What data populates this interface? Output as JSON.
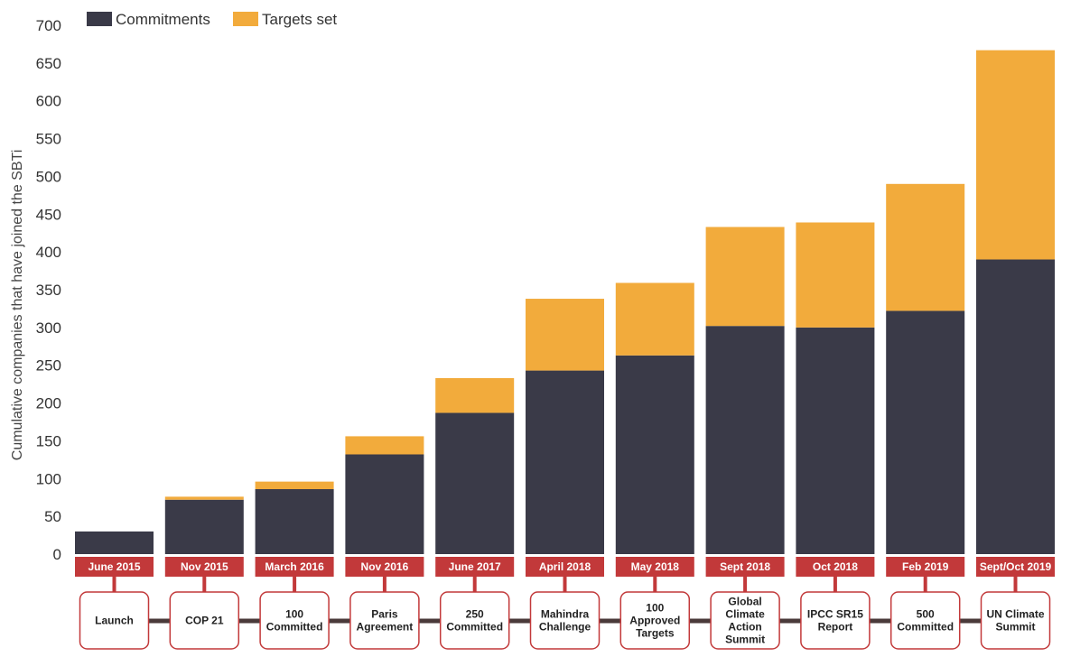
{
  "chart_data": {
    "type": "bar",
    "stacked": true,
    "ylabel": "Cumulative companies that have joined the SBTi",
    "ylim": [
      0,
      700
    ],
    "yticks": [
      0,
      50,
      100,
      150,
      200,
      250,
      300,
      350,
      400,
      450,
      500,
      550,
      600,
      650,
      700
    ],
    "categories": [
      "June 2015",
      "Nov 2015",
      "March 2016",
      "Nov 2016",
      "June 2017",
      "April 2018",
      "May 2018",
      "Sept 2018",
      "Oct 2018",
      "Feb 2019",
      "Sept/Oct 2019"
    ],
    "events": [
      "Launch",
      "COP 21",
      "100 Committed",
      "Paris Agreement",
      "250 Committed",
      "Mahindra Challenge",
      "100 Approved Targets",
      "Global Climate Action Summit",
      "IPCC SR15 Report",
      "500 Committed",
      "UN Climate Summit"
    ],
    "series": [
      {
        "name": "Commitments",
        "color": "#3a3a48",
        "values": [
          30,
          72,
          86,
          132,
          187,
          243,
          263,
          302,
          300,
          322,
          390
        ]
      },
      {
        "name": "Targets set",
        "color": "#f2ab3c",
        "values": [
          0,
          4,
          10,
          24,
          46,
          95,
          96,
          131,
          139,
          168,
          277
        ]
      }
    ],
    "legend_position": "top-left",
    "grid": false,
    "timeline_color": "#c2393a"
  }
}
